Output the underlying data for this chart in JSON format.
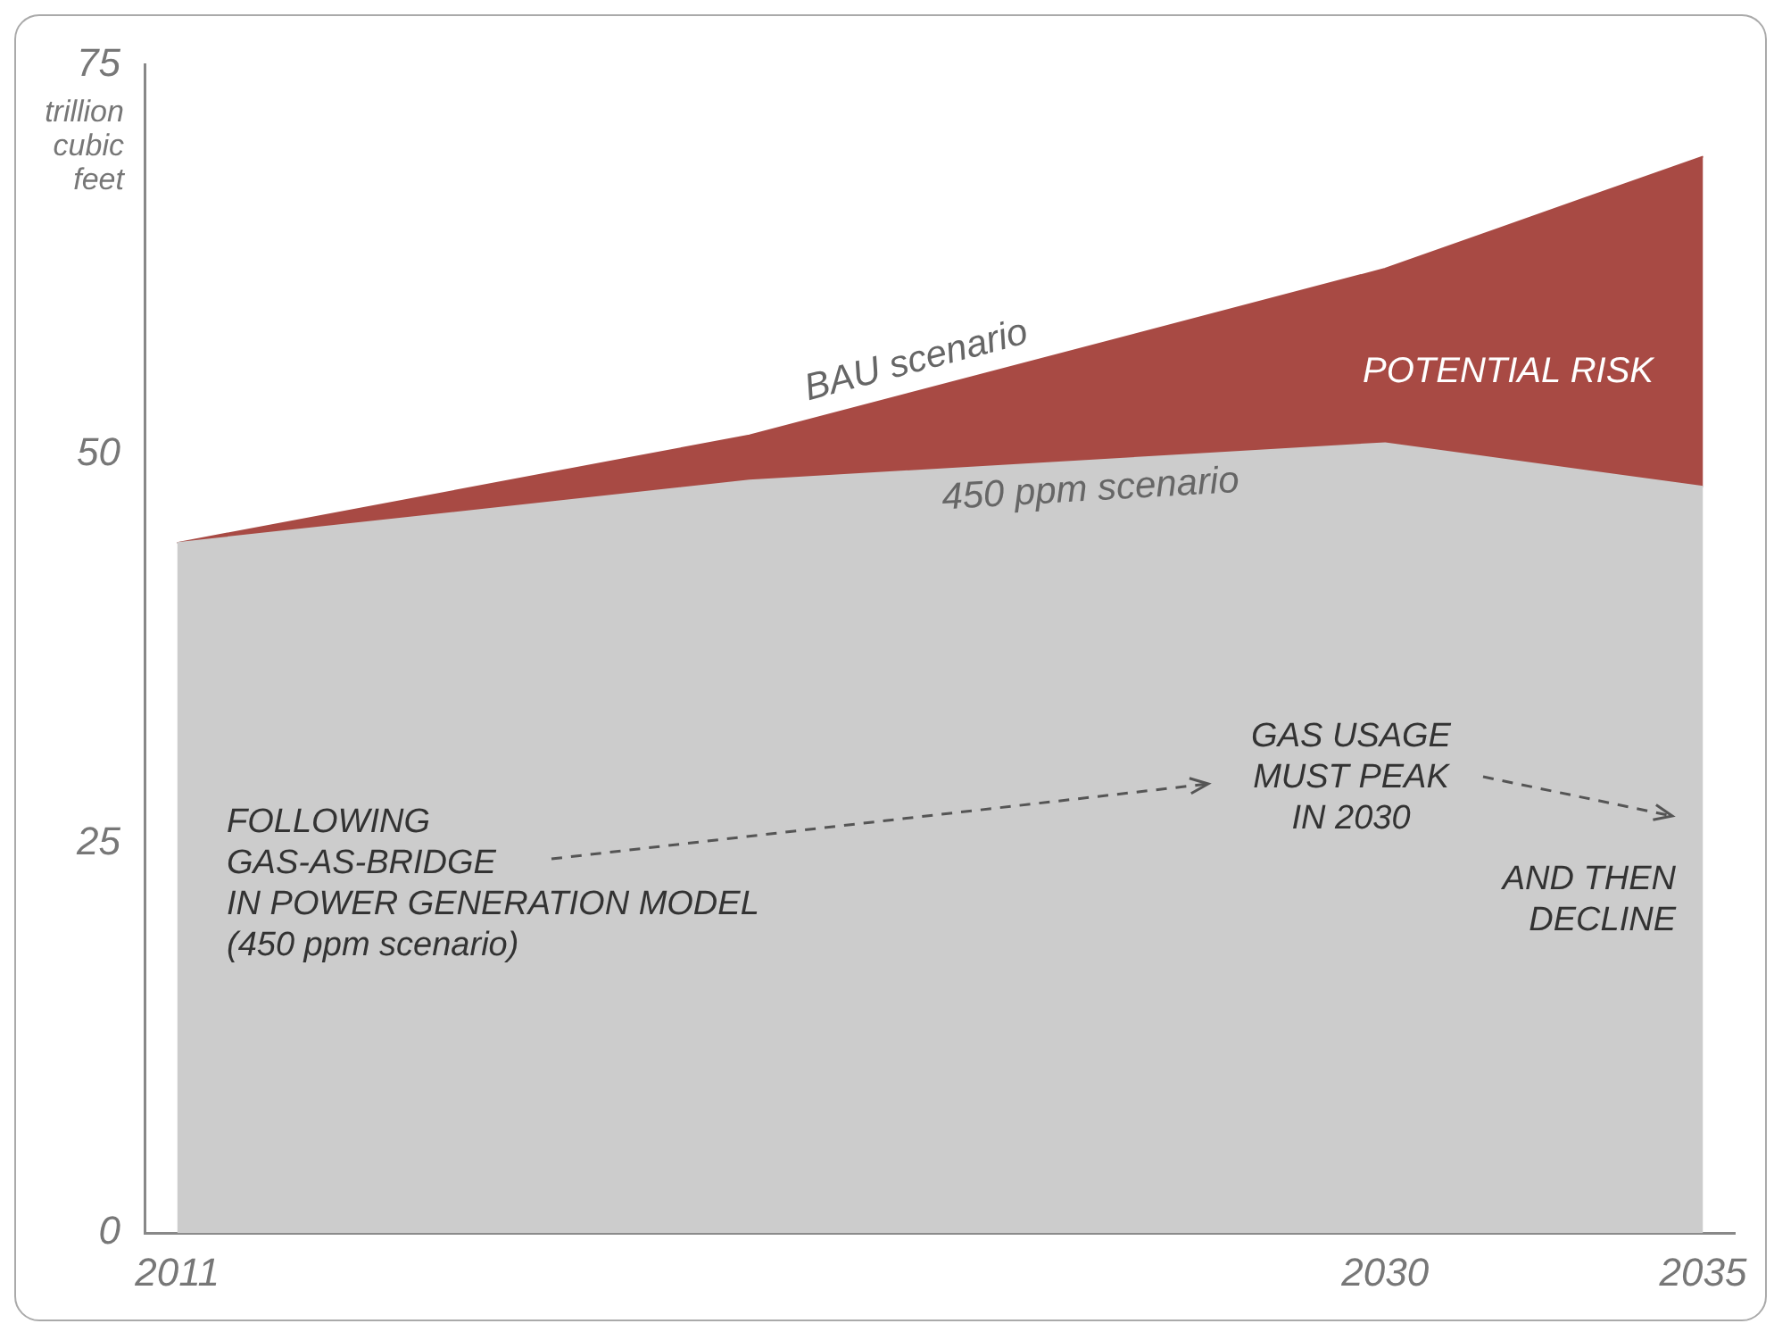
{
  "chart_data": {
    "type": "area",
    "ylabel": "trillion cubic feet",
    "x": [
      2011,
      2020,
      2030,
      2035
    ],
    "xlim": [
      2010.5,
      2035.5
    ],
    "xticks": [
      2011,
      2030,
      2035
    ],
    "ylim": [
      0,
      75
    ],
    "yticks": [
      0,
      25,
      50,
      75
    ],
    "grid": false,
    "legend": false,
    "series": [
      {
        "name": "450 ppm scenario",
        "color": "#cccccc",
        "values": [
          44.3,
          48.3,
          50.7,
          47.9
        ]
      },
      {
        "name": "BAU scenario",
        "color": "#a84a44",
        "values": [
          44.3,
          51.2,
          61.9,
          69.1
        ]
      }
    ],
    "annotations": [
      "POTENTIAL RISK",
      "FOLLOWING\nGAS-AS-BRIDGE\nIN POWER GENERATION MODEL\n(450 ppm scenario)",
      "GAS USAGE\nMUST PEAK\nIN 2030",
      "AND THEN\nDECLINE"
    ]
  }
}
